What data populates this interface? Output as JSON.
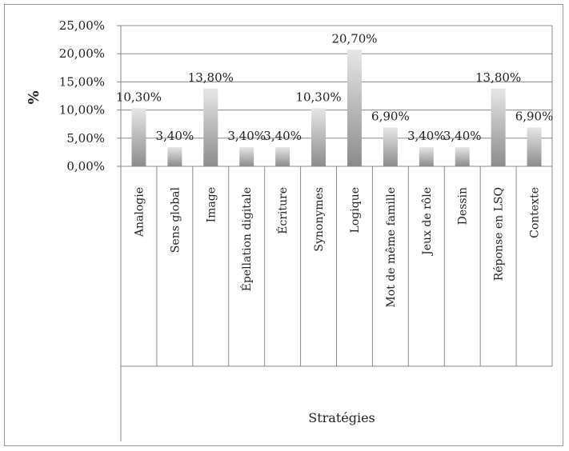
{
  "chart_data": {
    "type": "bar",
    "title": "",
    "xlabel": "Stratégies",
    "ylabel": "%",
    "ylim": [
      0,
      25
    ],
    "yticks": [
      0,
      5,
      10,
      15,
      20,
      25
    ],
    "ytick_labels": [
      "0,00%",
      "5,00%",
      "10,00%",
      "15,00%",
      "20,00%",
      "25,00%"
    ],
    "grid": true,
    "legend": "none",
    "categories": [
      "Analogie",
      "Sens global",
      "Image",
      "Épellation digitale",
      "Écriture",
      "Synonymes",
      "Logique",
      "Mot de même famille",
      "Jeux de rôle",
      "Dessin",
      "Réponse en LSQ",
      "Contexte"
    ],
    "values": [
      10.3,
      3.4,
      13.8,
      3.4,
      3.4,
      10.3,
      20.7,
      6.9,
      3.4,
      3.4,
      13.8,
      6.9
    ],
    "data_labels": [
      "10,30%",
      "3,40%",
      "13,80%",
      "3,40%",
      "3,40%",
      "10,30%",
      "20,70%",
      "6,90%",
      "3,40%",
      "3,40%",
      "13,80%",
      "6,90%"
    ],
    "bar_color_light": "#e6e6e6",
    "bar_color_dark": "#8c8c8c"
  }
}
